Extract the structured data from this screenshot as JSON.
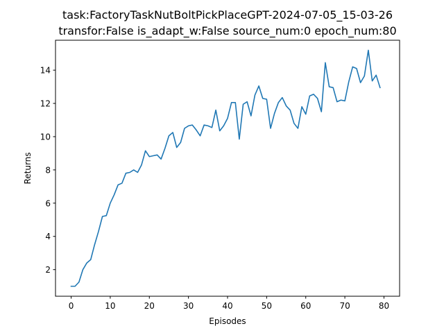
{
  "chart_data": {
    "type": "line",
    "title": [
      "task:FactoryTaskNutBoltPickPlaceGPT-2024-07-05_15-03-26",
      "transfor:False  is_adapt_w:False source_num:0   epoch_num:80"
    ],
    "xlabel": "Episodes",
    "ylabel": "Returns",
    "xlim": [
      -4,
      84
    ],
    "ylim": [
      0.4,
      15.8
    ],
    "xticks": [
      0,
      10,
      20,
      30,
      40,
      50,
      60,
      70,
      80
    ],
    "yticks": [
      2,
      4,
      6,
      8,
      10,
      12,
      14
    ],
    "grid": false,
    "legend": "none",
    "line_color": "#1f77b4",
    "series": [
      {
        "x": [
          0,
          1,
          2,
          3,
          4,
          5,
          6,
          7,
          8,
          9,
          10,
          11,
          12,
          13,
          14,
          15,
          16,
          17,
          18,
          19,
          20,
          21,
          22,
          23,
          24,
          25,
          26,
          27,
          28,
          29,
          30,
          31,
          32,
          33,
          34,
          35,
          36,
          37,
          38,
          39,
          40,
          41,
          42,
          43,
          44,
          45,
          46,
          47,
          48,
          49,
          50,
          51,
          52,
          53,
          54,
          55,
          56,
          57,
          58,
          59,
          60,
          61,
          62,
          63,
          64,
          65,
          66,
          67,
          68,
          69,
          70,
          71,
          72,
          73,
          74,
          75,
          76,
          77,
          78,
          79
        ],
        "values": [
          1.0,
          1.0,
          1.25,
          2.0,
          2.4,
          2.6,
          3.5,
          4.3,
          5.2,
          5.25,
          6.0,
          6.5,
          7.1,
          7.2,
          7.8,
          7.85,
          8.0,
          7.85,
          8.3,
          9.15,
          8.8,
          8.85,
          8.9,
          8.65,
          9.3,
          10.05,
          10.25,
          9.35,
          9.65,
          10.5,
          10.65,
          10.7,
          10.4,
          10.05,
          10.7,
          10.65,
          10.55,
          11.6,
          10.35,
          10.65,
          11.1,
          12.05,
          12.05,
          9.85,
          11.95,
          12.1,
          11.25,
          12.5,
          13.05,
          12.3,
          12.25,
          10.5,
          11.4,
          12.05,
          12.35,
          11.85,
          11.6,
          10.8,
          10.5,
          11.8,
          11.35,
          12.45,
          12.55,
          12.3,
          11.5,
          14.45,
          13.0,
          12.95,
          12.1,
          12.2,
          12.15,
          13.3,
          14.2,
          14.1,
          13.25,
          13.65,
          15.2,
          13.35,
          13.7,
          12.95
        ]
      }
    ]
  }
}
